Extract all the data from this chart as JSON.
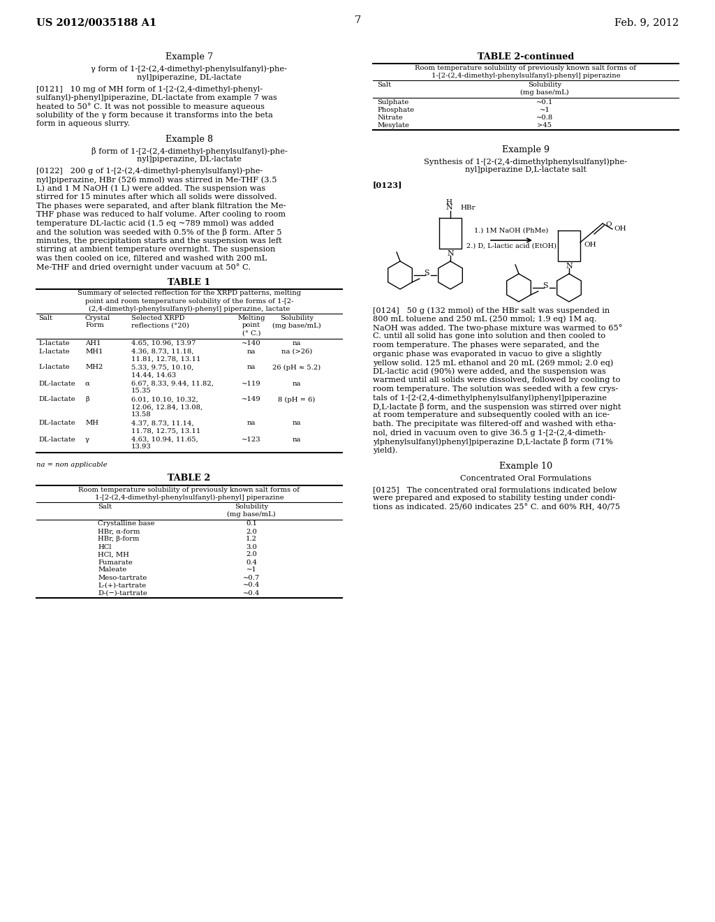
{
  "background_color": "#ffffff",
  "page_number": "7",
  "header_left": "US 2012/0035188 A1",
  "header_right": "Feb. 9, 2012",
  "example7_title": "Example 7",
  "example7_subtitle_l1": "γ form of 1-[2-(2,4-dimethyl-phenylsulfanyl)-phe-",
  "example7_subtitle_l2": "nyl]piperazine, DL-lactate",
  "example7_para_l1": "[0121]   10 mg of MH form of 1-[2-(2,4-dimethyl-phenyl-",
  "example7_para_l2": "sulfanyl)-phenyl]piperazine, DL-lactate from example 7 was",
  "example7_para_l3": "heated to 50° C. It was not possible to measure aqueous",
  "example7_para_l4": "solubility of the γ form because it transforms into the beta",
  "example7_para_l5": "form in aqueous slurry.",
  "example8_title": "Example 8",
  "example8_subtitle_l1": "β form of 1-[2-(2,4-dimethyl-phenylsulfanyl)-phe-",
  "example8_subtitle_l2": "nyl]piperazine, DL-lactate",
  "example8_para_l1": "[0122]   200 g of 1-[2-(2,4-dimethyl-phenylsulfanyl)-phe-",
  "example8_para_l2": "nyl]piperazine, HBr (526 mmol) was stirred in Me-THF (3.5",
  "example8_para_l3": "L) and 1 M NaOH (1 L) were added. The suspension was",
  "example8_para_l4": "stirred for 15 minutes after which all solids were dissolved.",
  "example8_para_l5": "The phases were separated, and after blank filtration the Me-",
  "example8_para_l6": "THF phase was reduced to half volume. After cooling to room",
  "example8_para_l7": "temperature DL-lactic acid (1.5 eq ~789 mmol) was added",
  "example8_para_l8": "and the solution was seeded with 0.5% of the β form. After 5",
  "example8_para_l9": "minutes, the precipitation starts and the suspension was left",
  "example8_para_l10": "stirring at ambient temperature overnight. The suspension",
  "example8_para_l11": "was then cooled on ice, filtered and washed with 200 mL",
  "example8_para_l12": "Me-THF and dried overnight under vacuum at 50° C.",
  "table1_title": "TABLE 1",
  "table1_sub1": "Summary of selected reflection for the XRPD patterns, melting",
  "table1_sub2": "point and room temperature solubility of the forms of 1-[2-",
  "table1_sub3": "(2,4-dimethyl-phenylsulfanyl)-phenyl] piperazine, lactate",
  "table1_col1_h": "Salt",
  "table1_col2_h": "Crystal\nForm",
  "table1_col3_h": "Selected XRPD\nreflections (°20)",
  "table1_col4_h": "Melting\npoint\n(° C.)",
  "table1_col5_h": "Solubility\n(mg base/mL)",
  "table1_rows": [
    [
      "L-lactate",
      "AH1",
      "4.65, 10.96, 13.97",
      "~140",
      "na"
    ],
    [
      "L-lactate",
      "MH1",
      "4.36, 8.73, 11.18,\n11.81, 12.78, 13.11",
      "na",
      "na (>26)"
    ],
    [
      "L-lactate",
      "MH2",
      "5.33, 9.75, 10.10,\n14.44, 14.63",
      "na",
      "26 (pH ≈ 5.2)"
    ],
    [
      "DL-lactate",
      "α",
      "6.67, 8.33, 9.44, 11.82,\n15.35",
      "~119",
      "na"
    ],
    [
      "DL-lactate",
      "β",
      "6.01, 10.10, 10.32,\n12.06, 12.84, 13.08,\n13.58",
      "~149",
      "8 (pH = 6)"
    ],
    [
      "DL-lactate",
      "MH",
      "4.37, 8.73, 11.14,\n11.78, 12.75, 13.11",
      "na",
      "na"
    ],
    [
      "DL-lactate",
      "γ",
      "4.63, 10.94, 11.65,\n13.93",
      "~123",
      "na"
    ]
  ],
  "table1_footnote": "na = non applicable",
  "table2_title": "TABLE 2",
  "table2_sub1": "Room temperature solubility of previously known salt forms of",
  "table2_sub2": "1-[2-(2,4-dimethyl-phenylsulfanyl)-phenyl] piperazine",
  "table2_col1_h": "Salt",
  "table2_col2_h": "Solubility\n(mg base/mL)",
  "table2_rows": [
    [
      "Crystalline base",
      "0.1"
    ],
    [
      "HBr, α-form",
      "2.0"
    ],
    [
      "HBr, β-form",
      "1.2"
    ],
    [
      "HCl",
      "3.0"
    ],
    [
      "HCl, MH",
      "2.0"
    ],
    [
      "Fumarate",
      "0.4"
    ],
    [
      "Maleate",
      "~1"
    ],
    [
      "Meso-tartrate",
      "~0.7"
    ],
    [
      "L-(+)-tartrate",
      "~0.4"
    ],
    [
      "D-(−)-tartrate",
      "~0.4"
    ]
  ],
  "table2cont_title": "TABLE 2-continued",
  "table2cont_sub1": "Room temperature solubility of previously known salt forms of",
  "table2cont_sub2": "1-[2-(2,4-dimethyl-phenylsulfanyl)-phenyl] piperazine",
  "table2cont_col1_h": "Salt",
  "table2cont_col2_h": "Solubility\n(mg base/mL)",
  "table2cont_rows": [
    [
      "Sulphate",
      "~0.1"
    ],
    [
      "Phosphate",
      "~1"
    ],
    [
      "Nitrate",
      "~0.8"
    ],
    [
      "Mesylate",
      ">45"
    ]
  ],
  "example9_title": "Example 9",
  "example9_sub1": "Synthesis of 1-[2-(2,4-dimethylphenylsulfanyl)phe-",
  "example9_sub2": "nyl]piperazine D,L-lactate salt",
  "example9_label": "[0123]",
  "arrow_text1": "1.) 1M NaOH (PhMe)",
  "arrow_text2": "2.) D, L-lactic acid (EtOH)",
  "example9_para2_lines": [
    "[0124]   50 g (132 mmol) of the HBr salt was suspended in",
    "800 mL toluene and 250 mL (250 mmol; 1.9 eq) 1M aq.",
    "NaOH was added. The two-phase mixture was warmed to 65°",
    "C. until all solid has gone into solution and then cooled to",
    "room temperature. The phases were separated, and the",
    "organic phase was evaporated in vacuo to give a slightly",
    "yellow solid. 125 mL ethanol and 20 mL (269 mmol; 2.0 eq)",
    "DL-lactic acid (90%) were added, and the suspension was",
    "warmed until all solids were dissolved, followed by cooling to",
    "room temperature. The solution was seeded with a few crys-",
    "tals of 1-[2-(2,4-dimethylphenylsulfanyl)phenyl]piperazine",
    "D,L-lactate β form, and the suspension was stirred over night",
    "at room temperature and subsequently cooled with an ice-",
    "bath. The precipitate was filtered-off and washed with etha-",
    "nol, dried in vacuum oven to give 36.5 g 1-[2-(2,4-dimeth-",
    "ylphenylsulfanyl)phenyl]piperazine D,L-lactate β form (71%",
    "yield)."
  ],
  "example10_title": "Example 10",
  "example10_subtitle": "Concentrated Oral Formulations",
  "example10_para_lines": [
    "[0125]   The concentrated oral formulations indicated below",
    "were prepared and exposed to stability testing under condi-",
    "tions as indicated. 25/60 indicates 25° C. and 60% RH, 40/75"
  ]
}
